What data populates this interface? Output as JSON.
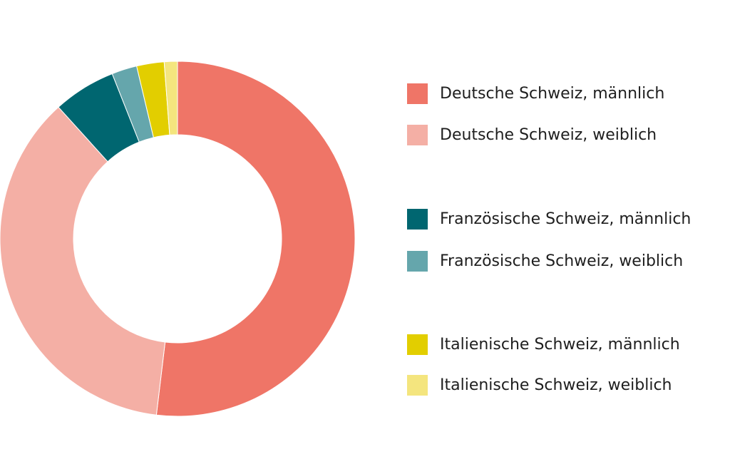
{
  "chart_data": {
    "type": "pie",
    "donut": true,
    "series": [
      {
        "name": "Deutsche Schweiz, männlich",
        "value": 51.9,
        "color": "#EF7567"
      },
      {
        "name": "Deutsche Schweiz, weiblich",
        "value": 36.4,
        "color": "#F4AFA5"
      },
      {
        "name": "Französische Schweiz, männlich",
        "value": 5.7,
        "color": "#006670"
      },
      {
        "name": "Französische Schweiz, weiblich",
        "value": 2.3,
        "color": "#65A6AC"
      },
      {
        "name": "Italienische Schweiz, männlich",
        "value": 2.5,
        "color": "#E2CE00"
      },
      {
        "name": "Italienische Schweiz, weiblich",
        "value": 1.2,
        "color": "#F4E57E"
      }
    ],
    "legend_position": "right"
  }
}
